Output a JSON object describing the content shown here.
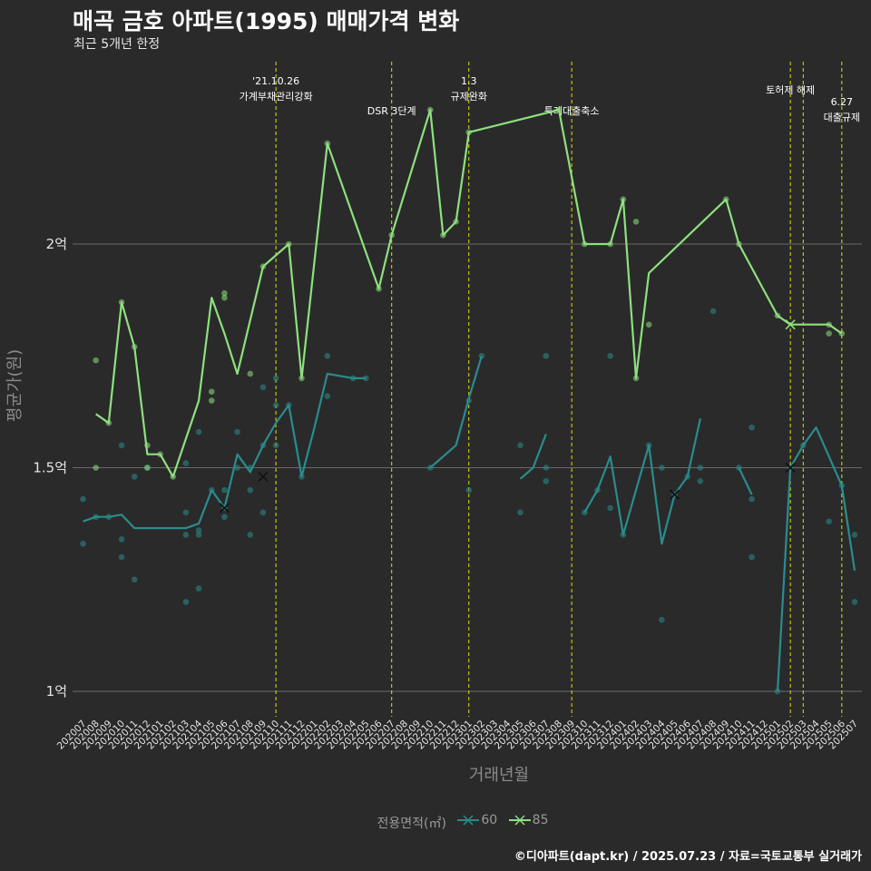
{
  "title": "매곡 금호 아파트(1995) 매매가격 변화",
  "subtitle": "최근 5개년 한정",
  "caption": "©디아파트(dapt.kr) / 2025.07.23 / 자료=국토교통부 실거래가",
  "legend": {
    "title": "전용면적(㎡)",
    "items": [
      {
        "label": "60",
        "color": "#2a8c8c"
      },
      {
        "label": "85",
        "color": "#8ee07e"
      }
    ]
  },
  "chart_data": {
    "type": "line",
    "xlabel": "거래년월",
    "ylabel": "평균가(원)",
    "ylim": [
      0.93,
      2.5
    ],
    "yticks": [
      {
        "value": 1.0,
        "label": "1억"
      },
      {
        "value": 1.5,
        "label": "1.5억"
      },
      {
        "value": 2.0,
        "label": "2억"
      }
    ],
    "grid": true,
    "legend_position": "bottom",
    "categories": [
      "202007",
      "202008",
      "202009",
      "202010",
      "202011",
      "202012",
      "202101",
      "202102",
      "202103",
      "202104",
      "202105",
      "202106",
      "202107",
      "202108",
      "202109",
      "202110",
      "202111",
      "202112",
      "202201",
      "202202",
      "202203",
      "202204",
      "202205",
      "202206",
      "202207",
      "202208",
      "202209",
      "202210",
      "202211",
      "202212",
      "202301",
      "202302",
      "202303",
      "202304",
      "202305",
      "202306",
      "202307",
      "202308",
      "202309",
      "202310",
      "202311",
      "202312",
      "202401",
      "202402",
      "202403",
      "202404",
      "202405",
      "202406",
      "202407",
      "202408",
      "202409",
      "202410",
      "202411",
      "202412",
      "202501",
      "202502",
      "202503",
      "202504",
      "202505",
      "202506",
      "202507"
    ],
    "series": [
      {
        "name": "60",
        "color": "#2a8c8c",
        "line": [
          [
            0,
            1.38
          ],
          [
            1,
            1.39
          ],
          [
            2,
            1.39
          ],
          [
            3,
            1.395
          ],
          [
            4,
            1.365
          ],
          [
            5,
            1.365
          ],
          [
            6,
            1.365
          ],
          [
            7,
            1.365
          ],
          [
            8,
            1.365
          ],
          [
            9,
            1.375
          ],
          [
            10,
            1.45
          ],
          [
            11,
            1.41
          ],
          [
            12,
            1.53
          ],
          [
            13,
            1.49
          ],
          [
            14,
            1.55
          ],
          [
            15,
            1.6
          ],
          [
            16,
            1.64
          ],
          [
            17,
            1.48
          ],
          [
            18,
            1.59
          ],
          [
            19,
            1.71
          ],
          [
            20,
            1.705
          ],
          [
            21,
            1.7
          ],
          [
            22,
            1.7
          ],
          null,
          [
            27,
            1.5
          ],
          [
            28,
            1.525
          ],
          [
            29,
            1.55
          ],
          [
            30,
            1.655
          ],
          [
            31,
            1.75
          ],
          null,
          [
            34,
            1.475
          ],
          [
            35,
            1.5
          ],
          [
            36,
            1.575
          ],
          null,
          [
            39,
            1.4
          ],
          [
            40,
            1.45
          ],
          [
            41,
            1.525
          ],
          [
            42,
            1.35
          ],
          [
            43,
            1.45
          ],
          [
            44,
            1.55
          ],
          [
            45,
            1.33
          ],
          [
            46,
            1.44
          ],
          [
            47,
            1.48
          ],
          [
            48,
            1.61
          ],
          null,
          [
            51,
            1.5
          ],
          [
            52,
            1.44
          ],
          null,
          [
            54,
            1.0
          ],
          [
            55,
            1.5
          ],
          [
            56,
            1.55
          ],
          [
            57,
            1.59
          ],
          [
            58,
            1.525
          ],
          [
            59,
            1.46
          ],
          [
            60,
            1.27
          ]
        ],
        "points": [
          [
            0,
            1.43
          ],
          [
            0,
            1.33
          ],
          [
            1,
            1.39
          ],
          [
            2,
            1.39
          ],
          [
            3,
            1.55
          ],
          [
            3,
            1.34
          ],
          [
            3,
            1.3
          ],
          [
            4,
            1.48
          ],
          [
            4,
            1.25
          ],
          [
            5,
            1.5
          ],
          [
            8,
            1.51
          ],
          [
            8,
            1.4
          ],
          [
            8,
            1.35
          ],
          [
            8,
            1.2
          ],
          [
            9,
            1.58
          ],
          [
            9,
            1.36
          ],
          [
            9,
            1.35
          ],
          [
            9,
            1.23
          ],
          [
            10,
            1.45
          ],
          [
            11,
            1.45
          ],
          [
            11,
            1.41
          ],
          [
            11,
            1.39
          ],
          [
            12,
            1.58
          ],
          [
            12,
            1.5
          ],
          [
            13,
            1.5
          ],
          [
            13,
            1.45
          ],
          [
            13,
            1.35
          ],
          [
            14,
            1.68
          ],
          [
            14,
            1.55
          ],
          [
            14,
            1.4
          ],
          [
            15,
            1.64
          ],
          [
            15,
            1.55
          ],
          [
            15,
            1.7
          ],
          [
            16,
            1.64
          ],
          [
            17,
            1.48
          ],
          [
            19,
            1.75
          ],
          [
            19,
            1.66
          ],
          [
            21,
            1.7
          ],
          [
            22,
            1.7
          ],
          [
            27,
            1.5
          ],
          [
            30,
            1.65
          ],
          [
            30,
            1.45
          ],
          [
            31,
            1.75
          ],
          [
            34,
            1.55
          ],
          [
            34,
            1.4
          ],
          [
            36,
            1.75
          ],
          [
            36,
            1.5
          ],
          [
            36,
            1.47
          ],
          [
            39,
            1.4
          ],
          [
            40,
            1.45
          ],
          [
            41,
            1.41
          ],
          [
            41,
            1.75
          ],
          [
            42,
            1.35
          ],
          [
            44,
            1.55
          ],
          [
            45,
            1.16
          ],
          [
            45,
            1.5
          ],
          [
            46,
            1.44
          ],
          [
            47,
            1.48
          ],
          [
            48,
            1.5
          ],
          [
            48,
            1.47
          ],
          [
            49,
            1.85
          ],
          [
            51,
            1.5
          ],
          [
            52,
            1.59
          ],
          [
            52,
            1.43
          ],
          [
            52,
            1.3
          ],
          [
            54,
            1.0
          ],
          [
            55,
            1.5
          ],
          [
            56,
            1.55
          ],
          [
            58,
            1.38
          ],
          [
            59,
            1.46
          ],
          [
            60,
            1.35
          ],
          [
            60,
            1.2
          ]
        ],
        "x_markers": [
          [
            11,
            1.41
          ],
          [
            14,
            1.48
          ],
          [
            46,
            1.44
          ],
          [
            55,
            1.5
          ]
        ]
      },
      {
        "name": "85",
        "color": "#8ee07e",
        "line": [
          [
            1,
            1.62
          ],
          [
            2,
            1.6
          ],
          [
            3,
            1.87
          ],
          [
            4,
            1.77
          ],
          [
            5,
            1.53
          ],
          [
            6,
            1.53
          ],
          [
            7,
            1.48
          ],
          [
            8,
            1.565
          ],
          [
            9,
            1.65
          ],
          [
            10,
            1.88
          ],
          [
            11,
            1.8
          ],
          [
            12,
            1.71
          ],
          [
            13,
            1.83
          ],
          [
            14,
            1.95
          ],
          [
            16,
            2.0
          ],
          [
            17,
            1.7
          ],
          [
            19,
            2.225
          ],
          [
            23,
            1.9
          ],
          [
            24,
            2.02
          ],
          [
            27,
            2.3
          ],
          [
            28,
            2.02
          ],
          [
            29,
            2.05
          ],
          [
            30,
            2.25
          ],
          [
            37,
            2.3
          ],
          [
            39,
            2.0
          ],
          [
            40,
            2.0
          ],
          [
            41,
            2.0
          ],
          [
            42,
            2.1
          ],
          [
            43,
            1.7
          ],
          [
            44,
            1.935
          ],
          [
            50,
            2.1
          ],
          [
            51,
            2.0
          ],
          [
            54,
            1.84
          ],
          [
            55,
            1.82
          ],
          [
            56,
            1.82
          ],
          [
            58,
            1.82
          ],
          [
            59,
            1.8
          ]
        ],
        "points": [
          [
            1,
            1.74
          ],
          [
            1,
            1.5
          ],
          [
            2,
            1.6
          ],
          [
            3,
            1.87
          ],
          [
            4,
            1.77
          ],
          [
            5,
            1.55
          ],
          [
            5,
            1.5
          ],
          [
            6,
            1.53
          ],
          [
            7,
            1.48
          ],
          [
            10,
            1.67
          ],
          [
            10,
            1.65
          ],
          [
            11,
            1.89
          ],
          [
            11,
            1.88
          ],
          [
            13,
            1.71
          ],
          [
            14,
            1.95
          ],
          [
            16,
            2.0
          ],
          [
            17,
            1.7
          ],
          [
            19,
            2.225
          ],
          [
            23,
            1.9
          ],
          [
            24,
            2.02
          ],
          [
            27,
            2.3
          ],
          [
            28,
            2.02
          ],
          [
            29,
            2.05
          ],
          [
            30,
            2.25
          ],
          [
            37,
            2.3
          ],
          [
            39,
            2.0
          ],
          [
            41,
            2.0
          ],
          [
            42,
            2.1
          ],
          [
            43,
            1.7
          ],
          [
            43,
            2.05
          ],
          [
            44,
            1.82
          ],
          [
            50,
            2.1
          ],
          [
            51,
            2.0
          ],
          [
            54,
            1.84
          ],
          [
            58,
            1.82
          ],
          [
            58,
            1.8
          ],
          [
            59,
            1.8
          ]
        ],
        "x_markers": [
          [
            55,
            1.82
          ]
        ]
      }
    ],
    "annotations": [
      {
        "x": 15.0,
        "lines": [
          "'21.10.26",
          "가계부채관리강화"
        ],
        "row": 0
      },
      {
        "x": 24.0,
        "lines": [
          "DSR 3단계"
        ],
        "row": 2
      },
      {
        "x": 30.0,
        "lines": [
          "1.3",
          "규제완화"
        ],
        "row": 0
      },
      {
        "x": 38.0,
        "lines": [
          "특례대출축소"
        ],
        "row": 2
      },
      {
        "x": 55.0,
        "lines": [
          "토허제 해제"
        ],
        "row": 1
      },
      {
        "x": 56.0,
        "lines": [],
        "row": 1
      },
      {
        "x": 59.0,
        "lines": [
          "6.27",
          "대출규제"
        ],
        "row": 1.5
      }
    ]
  }
}
